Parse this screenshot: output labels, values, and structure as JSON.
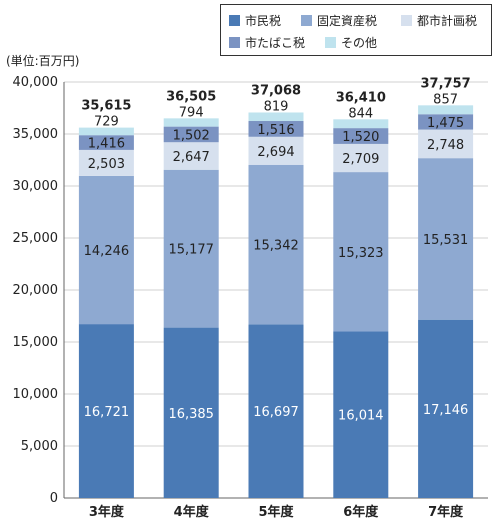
{
  "chart_data": {
    "type": "bar",
    "stacked": true,
    "unit_label": "(単位:百万円)",
    "categories": [
      "3年度",
      "4年度",
      "5年度",
      "6年度",
      "7年度"
    ],
    "series": [
      {
        "name": "市民税",
        "color": "#4a7ab5",
        "values": [
          16721,
          16385,
          16697,
          16014,
          17146
        ],
        "labels": [
          "16,721",
          "16,385",
          "16,697",
          "16,014",
          "17,146"
        ]
      },
      {
        "name": "固定資産税",
        "color": "#8ea9d1",
        "values": [
          14246,
          15177,
          15342,
          15323,
          15531
        ],
        "labels": [
          "14,246",
          "15,177",
          "15,342",
          "15,323",
          "15,531"
        ]
      },
      {
        "name": "都市計画税",
        "color": "#d6e0ee",
        "values": [
          2503,
          2647,
          2694,
          2709,
          2748
        ],
        "labels": [
          "2,503",
          "2,647",
          "2,694",
          "2,709",
          "2,748"
        ]
      },
      {
        "name": "市たばこ税",
        "color": "#7b93c2",
        "values": [
          1416,
          1502,
          1516,
          1520,
          1475
        ],
        "labels": [
          "1,416",
          "1,502",
          "1,516",
          "1,520",
          "1,475"
        ]
      },
      {
        "name": "その他",
        "color": "#bfe3ee",
        "values": [
          729,
          794,
          819,
          844,
          857
        ],
        "labels": [
          "729",
          "794",
          "819",
          "844",
          "857"
        ]
      }
    ],
    "totals": [
      "35,615",
      "36,505",
      "37,068",
      "36,410",
      "37,757"
    ],
    "ylim": [
      0,
      40000
    ],
    "yticks": [
      0,
      5000,
      10000,
      15000,
      20000,
      25000,
      30000,
      35000,
      40000
    ],
    "ytick_labels": [
      "0",
      "5,000",
      "10,000",
      "15,000",
      "20,000",
      "25,000",
      "30,000",
      "35,000",
      "40,000"
    ],
    "grid": true,
    "legend_position": "top-right"
  }
}
